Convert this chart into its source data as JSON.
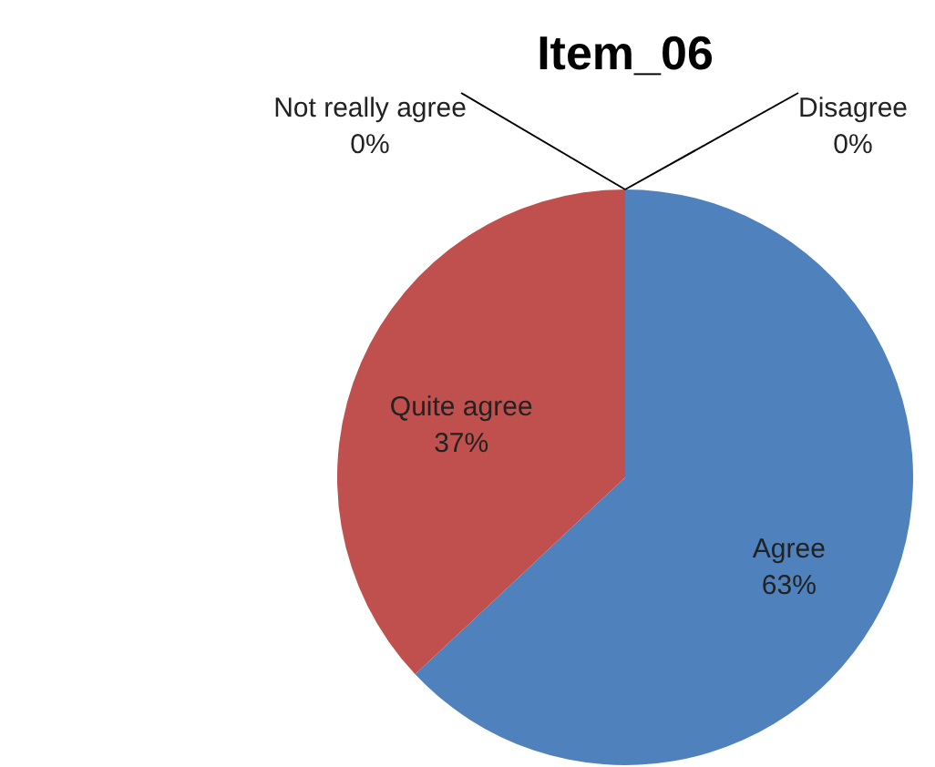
{
  "chart_data": {
    "type": "pie",
    "title": "Item_06",
    "categories": [
      "Agree",
      "Quite agree",
      "Not really agree",
      "Disagree"
    ],
    "values": [
      63,
      37,
      0,
      0
    ],
    "colors": [
      "#4f81bd",
      "#c0504d",
      "#9bbb59",
      "#8064a2"
    ],
    "value_labels": [
      "63%",
      "37%",
      "0%",
      "0%"
    ]
  }
}
